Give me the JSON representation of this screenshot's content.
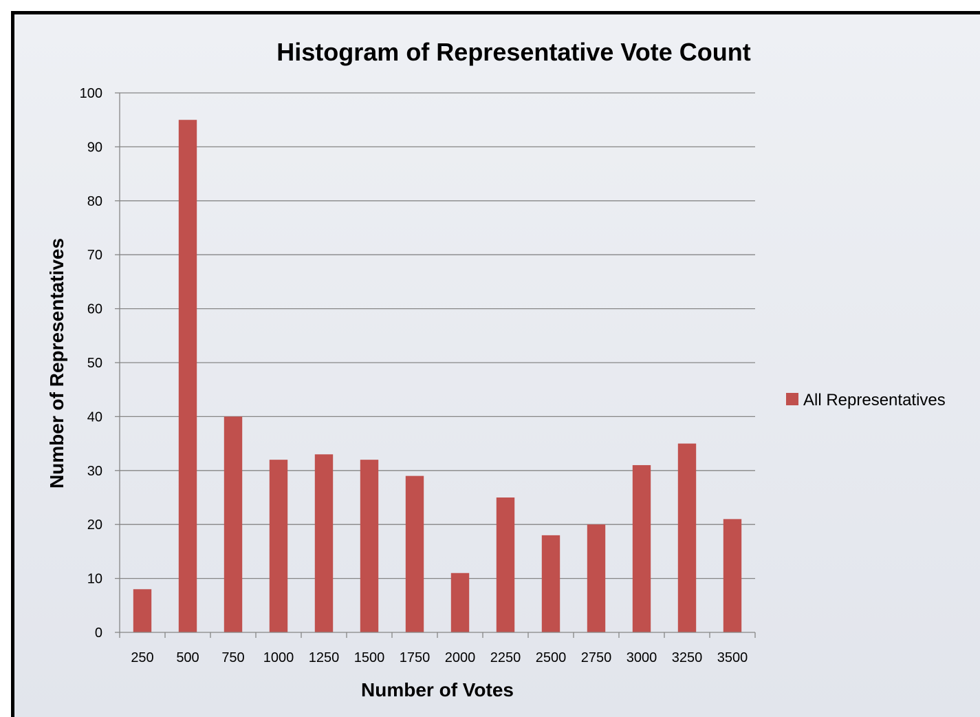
{
  "chart_data": {
    "type": "bar",
    "title": "Histogram of Representative Vote Count",
    "xlabel": "Number of Votes",
    "ylabel": "Number of Representatives",
    "categories": [
      "250",
      "500",
      "750",
      "1000",
      "1250",
      "1500",
      "1750",
      "2000",
      "2250",
      "2500",
      "2750",
      "3000",
      "3250",
      "3500"
    ],
    "series": [
      {
        "name": "All Representatives",
        "values": [
          8,
          95,
          40,
          32,
          33,
          32,
          29,
          11,
          25,
          18,
          20,
          31,
          35,
          21
        ],
        "color": "#c0504d"
      }
    ],
    "ylim": [
      0,
      100
    ],
    "yticks": [
      0,
      10,
      20,
      30,
      40,
      50,
      60,
      70,
      80,
      90,
      100
    ],
    "grid": true,
    "legend_position": "right"
  }
}
